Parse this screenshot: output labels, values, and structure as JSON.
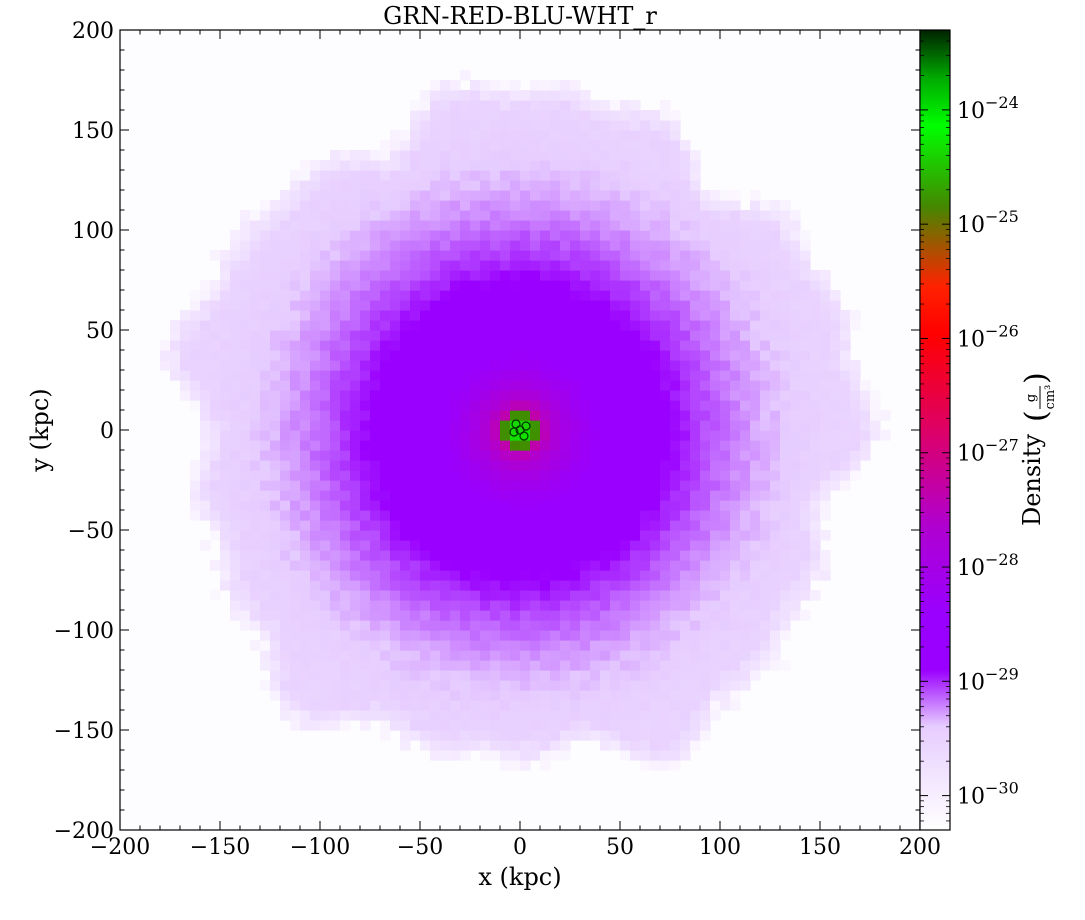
{
  "chart_data": {
    "type": "heatmap",
    "title": "GRN-RED-BLU-WHT_r",
    "xlabel": "x  (kpc)",
    "ylabel": "y  (kpc)",
    "xlim": [
      -200,
      200
    ],
    "ylim": [
      -200,
      200
    ],
    "x_ticks": [
      -200,
      -150,
      -100,
      -50,
      0,
      50,
      100,
      150,
      200
    ],
    "y_ticks": [
      -200,
      -150,
      -100,
      -50,
      0,
      50,
      100,
      150,
      200
    ],
    "x_tick_labels": [
      "−200",
      "−150",
      "−100",
      "−50",
      "0",
      "50",
      "100",
      "150",
      "200"
    ],
    "y_tick_labels": [
      "−200",
      "−150",
      "−100",
      "−50",
      "0",
      "50",
      "100",
      "150",
      "200"
    ],
    "colormap": "GRN-RED-BLU-WHT_r",
    "colorbar": {
      "label": "Density",
      "unit_numerator": "g",
      "unit_denominator": "cm³",
      "scale": "log",
      "range": [
        5e-31,
        5e-24
      ],
      "ticks": [
        1e-30,
        1e-29,
        1e-28,
        1e-27,
        1e-26,
        1e-25,
        1e-24
      ],
      "tick_mantissa": [
        "10",
        "10",
        "10",
        "10",
        "10",
        "10",
        "10"
      ],
      "tick_exponents": [
        "−30",
        "−29",
        "−28",
        "−27",
        "−26",
        "−25",
        "−24"
      ],
      "colors": {
        "white": "#ffffff",
        "light_violet": "#d9b3ff",
        "violet": "#9900ff",
        "magenta": "#cc00aa",
        "red": "#ff0000",
        "green": "#00ff00",
        "dark_green": "#003300"
      }
    },
    "blob": {
      "center_kpc": [
        0,
        0
      ],
      "radius_kpc": 168,
      "core_density": 1e-24,
      "core_radius_kpc": 4,
      "edge_density": 1e-30,
      "dominant_outer_density": 3e-30
    }
  }
}
